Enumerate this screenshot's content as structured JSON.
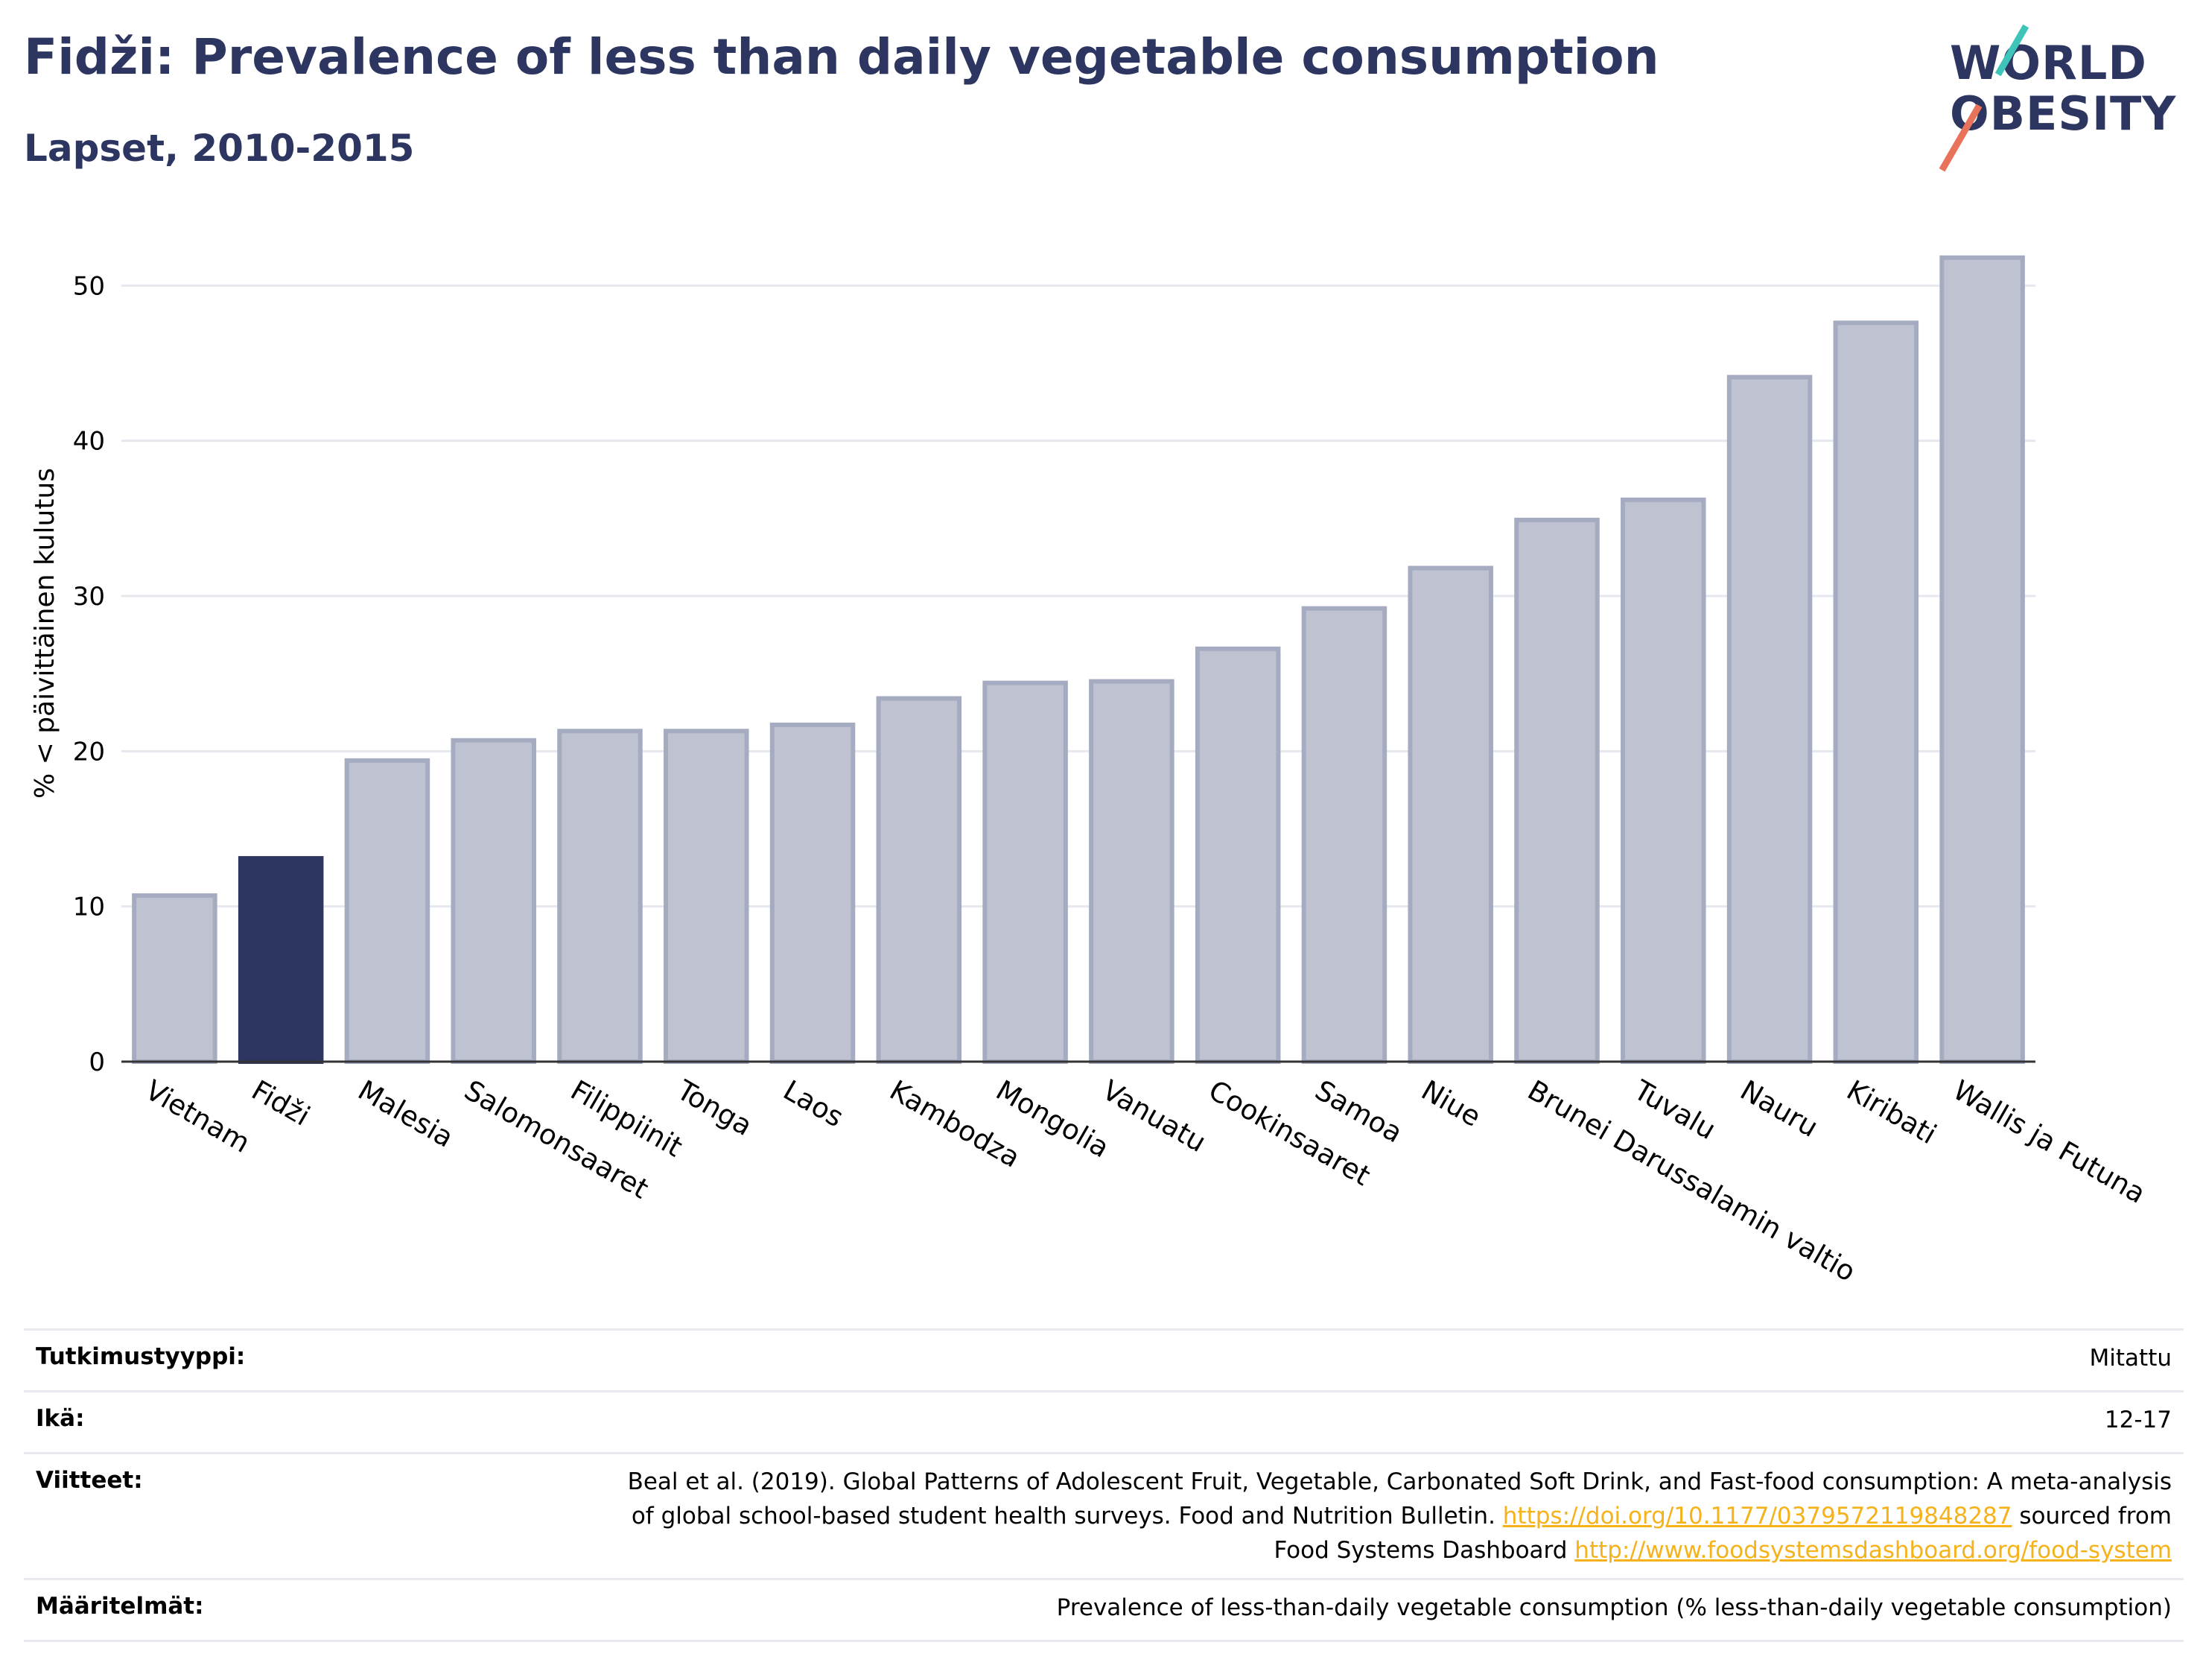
{
  "header": {
    "title": "Fidži: Prevalence of less than daily vegetable consumption",
    "subtitle": "Lapset, 2010-2015"
  },
  "logo": {
    "line1": "WORLD",
    "line2": "OBESITY"
  },
  "colors": {
    "highlight_bar": "#2d3561",
    "other_bar": "#bfc3d1",
    "bar_outline": "#a5abc0",
    "title": "#2d3561",
    "link": "#f5b21b",
    "gridline": "#e6e8ef"
  },
  "chart_data": {
    "type": "bar",
    "title": "Fidži: Prevalence of less than daily vegetable consumption",
    "subtitle": "Lapset, 2010-2015",
    "xlabel": "",
    "ylabel": "% < päivittäinen kulutus",
    "ylim": [
      0,
      54
    ],
    "yticks": [
      0,
      10,
      20,
      30,
      40,
      50
    ],
    "grid": true,
    "highlight": "Fidži",
    "categories": [
      "Vietnam",
      "Fidži",
      "Malesia",
      "Salomonsaaret",
      "Filippiinit",
      "Tonga",
      "Laos",
      "Kambodza",
      "Mongolia",
      "Vanuatu",
      "Cookinsaaret",
      "Samoa",
      "Niue",
      "Brunei Darussalamin valtio",
      "Tuvalu",
      "Nauru",
      "Kiribati",
      "Wallis ja Futuna"
    ],
    "values": [
      10.7,
      13.1,
      19.4,
      20.7,
      21.3,
      21.3,
      21.7,
      23.4,
      24.4,
      24.5,
      26.6,
      29.2,
      31.8,
      34.9,
      36.2,
      44.1,
      47.6,
      51.8
    ]
  },
  "info": {
    "study_type_label": "Tutkimustyyppi:",
    "study_type_value": "Mitattu",
    "age_label": "Ikä:",
    "age_value": "12-17",
    "references_label": "Viitteet:",
    "references_line1": "Beal et al. (2019). Global Patterns of Adolescent Fruit, Vegetable, Carbonated Soft Drink, and Fast-food consumption: A meta-analysis",
    "references_line2_text": "of global school-based student health surveys. Food and Nutrition Bulletin.",
    "references_line2_link": "https://doi.org/10.1177/0379572119848287",
    "references_line2_tail": "sourced from",
    "references_line3_text": "Food Systems Dashboard",
    "references_line3_link": "http://www.foodsystemsdashboard.org/food-system",
    "definitions_label": "Määritelmät:",
    "definitions_value": "Prevalence of less-than-daily vegetable consumption (% less-than-daily vegetable consumption)"
  }
}
